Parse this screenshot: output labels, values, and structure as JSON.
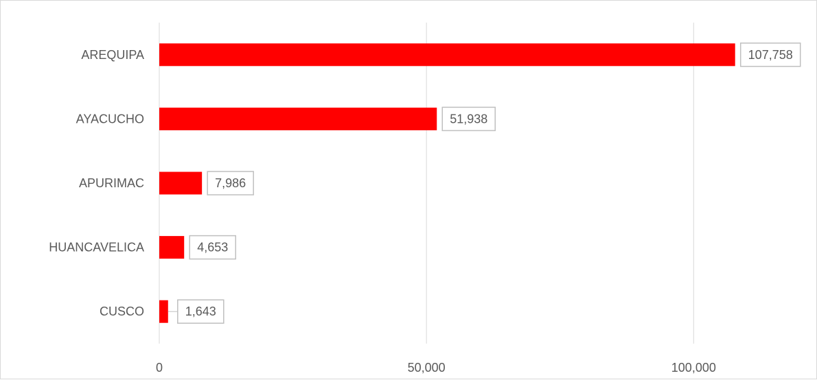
{
  "chart_data": {
    "type": "bar",
    "orientation": "horizontal",
    "categories": [
      "AREQUIPA",
      "AYACUCHO",
      "APURIMAC",
      "HUANCAVELICA",
      "CUSCO"
    ],
    "values": [
      107758,
      51938,
      7986,
      4653,
      1643
    ],
    "value_labels": [
      "107,758",
      "51,938",
      "7,986",
      "4,653",
      "1,643"
    ],
    "xlim": [
      0,
      120000
    ],
    "xticks": [
      0,
      50000,
      100000
    ],
    "xtick_labels": [
      "0",
      "50,000",
      "100,000"
    ],
    "grid": true,
    "legend": "none",
    "title": "",
    "xlabel": "",
    "ylabel": "",
    "colors": {
      "bar": "#ff0000",
      "grid": "#d9d9d9",
      "label_border": "#bfbfbf",
      "text": "#595959",
      "frame": "#d9d9d9"
    }
  }
}
